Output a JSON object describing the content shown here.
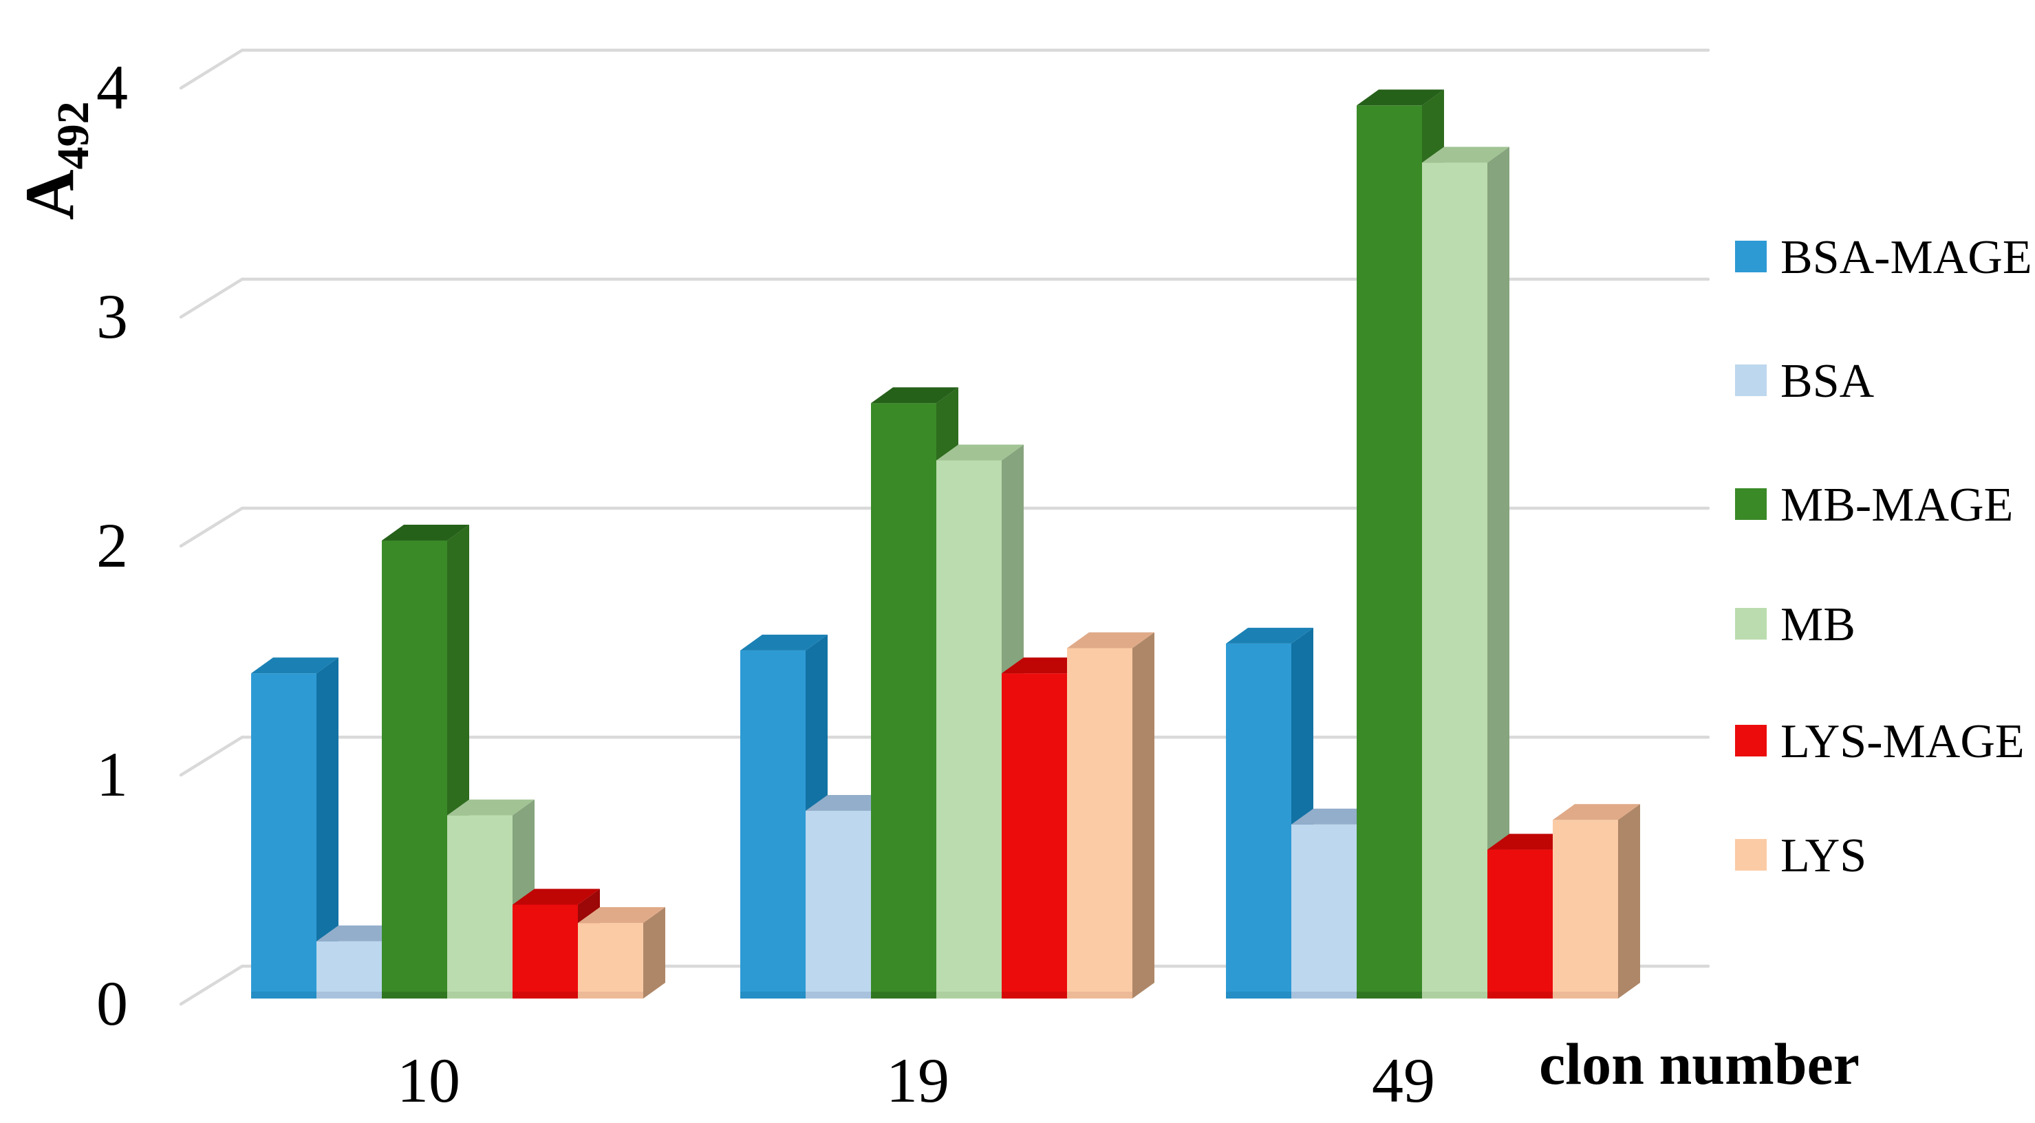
{
  "figure": {
    "background": "#FFFFFF"
  },
  "y_axis": {
    "title": "A",
    "title_subscript": "492",
    "tick_labels": [
      "0",
      "1",
      "2",
      "3",
      "4"
    ]
  },
  "x_axis": {
    "title": "clon number",
    "category_labels": [
      "10",
      "19",
      "49"
    ]
  },
  "legend": {
    "items": [
      "BSA-MAGE",
      "BSA",
      "MB-MAGE",
      "MB",
      "LYS-MAGE",
      "LYS"
    ]
  },
  "chart_data": {
    "type": "bar",
    "projection": "3d-oblique",
    "title": "",
    "xlabel": "clon number",
    "ylabel": "A492",
    "categories": [
      "10",
      "19",
      "49"
    ],
    "series": [
      {
        "name": "BSA-MAGE",
        "color": "#2D9AD4",
        "top_color": "#1B81B5",
        "side_color": "#1272A4",
        "values": [
          1.42,
          1.52,
          1.55
        ]
      },
      {
        "name": "BSA",
        "color": "#BDD7EE",
        "top_color": "#93AECB",
        "side_color": "#8CA6C2",
        "values": [
          0.25,
          0.82,
          0.76
        ]
      },
      {
        "name": "MB-MAGE",
        "color": "#3A8A28",
        "top_color": "#26611A",
        "side_color": "#2E6C1E",
        "values": [
          2.0,
          2.6,
          3.9
        ]
      },
      {
        "name": "MB",
        "color": "#BBDCAE",
        "top_color": "#A2C494",
        "side_color": "#86A47D",
        "values": [
          0.8,
          2.35,
          3.65
        ]
      },
      {
        "name": "LYS-MAGE",
        "color": "#EC0C0C",
        "top_color": "#C00505",
        "side_color": "#9C0707",
        "values": [
          0.41,
          1.42,
          0.65
        ]
      },
      {
        "name": "LYS",
        "color": "#FBCBA6",
        "top_color": "#E0AA88",
        "side_color": "#AE8768",
        "values": [
          0.33,
          1.53,
          0.78
        ]
      }
    ],
    "ylim": [
      0,
      4
    ],
    "yticks": [
      0,
      1,
      2,
      3,
      4
    ],
    "grid": true,
    "grid_color": "#D9D9D9",
    "text_color": "#000000",
    "legend_position": "right"
  }
}
